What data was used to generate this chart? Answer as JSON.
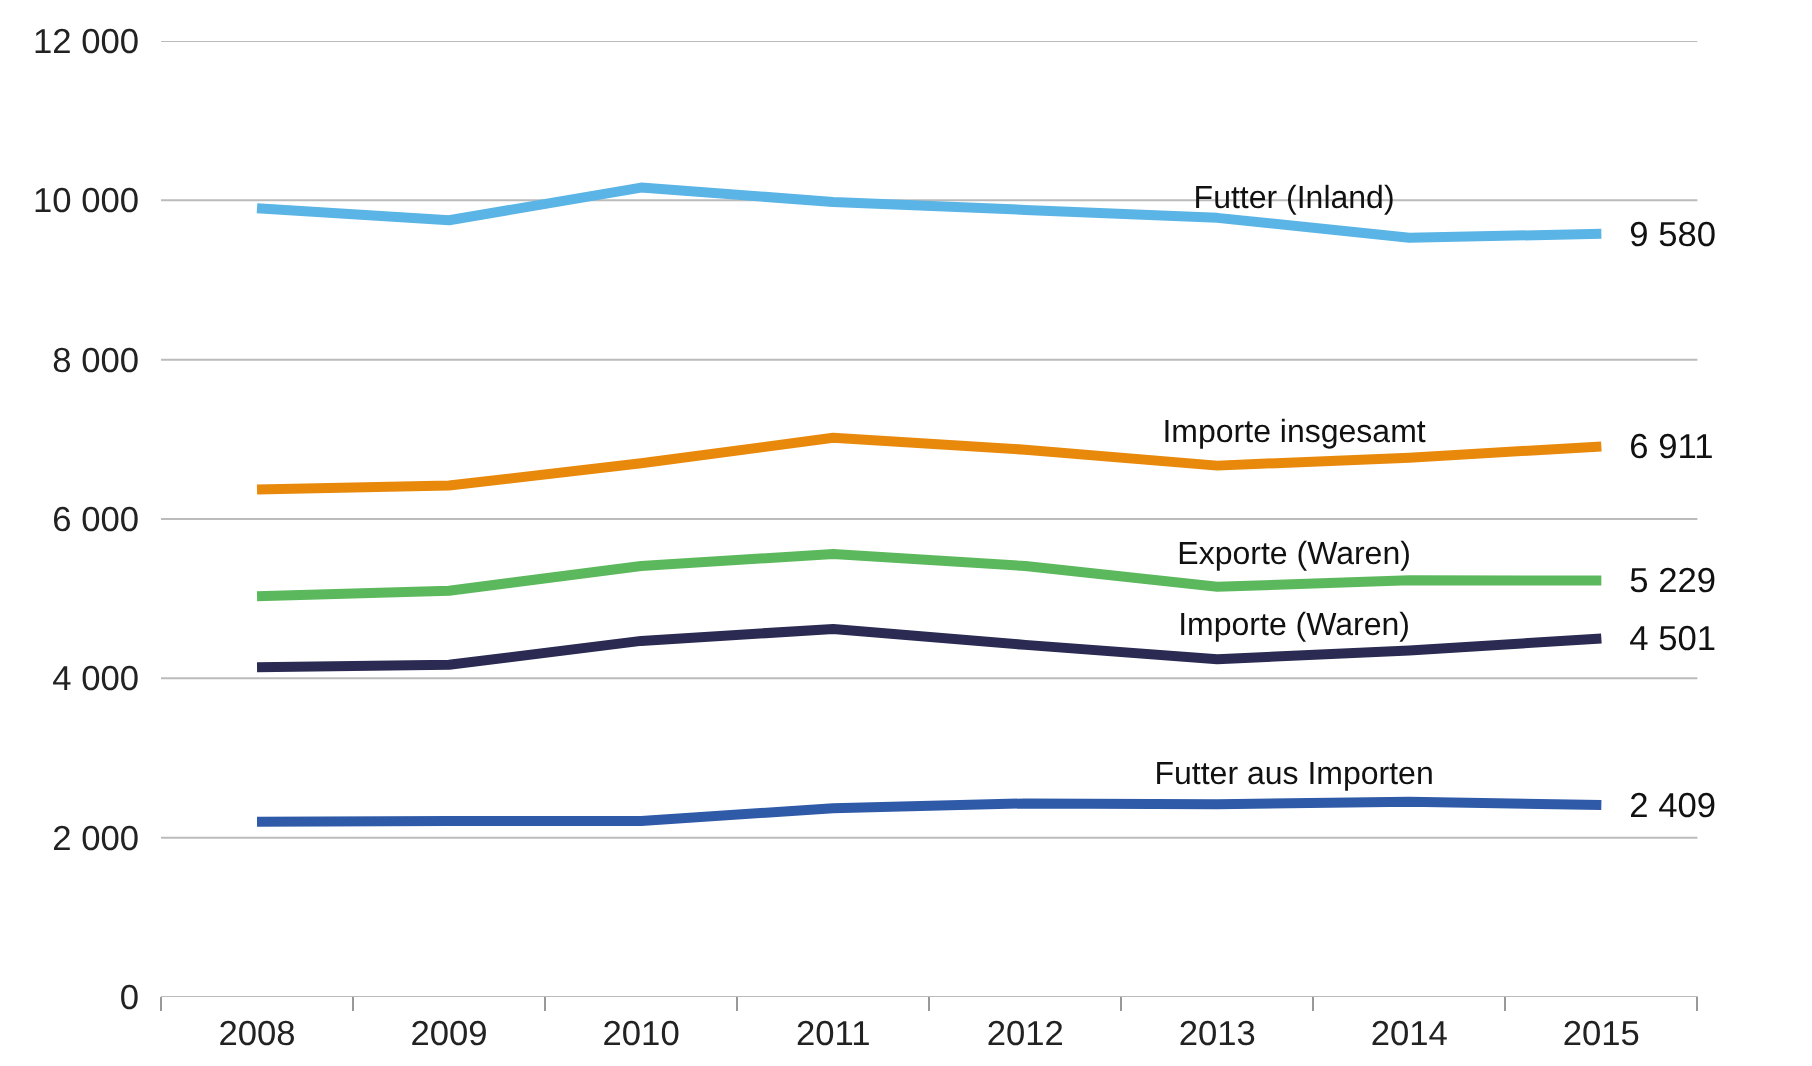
{
  "chart_data": {
    "type": "line",
    "categories": [
      "2008",
      "2009",
      "2010",
      "2011",
      "2012",
      "2013",
      "2014",
      "2015"
    ],
    "series": [
      {
        "name": "Futter (Inland)",
        "color": "#5ab4e5",
        "values": [
          9900,
          9750,
          10160,
          9980,
          9880,
          9780,
          9530,
          9580
        ],
        "value_labels": [
          null,
          null,
          null,
          null,
          null,
          null,
          null,
          "9 580"
        ]
      },
      {
        "name": "Importe insgesamt",
        "color": "#e8890c",
        "values": [
          6370,
          6420,
          6700,
          7020,
          6870,
          6670,
          6770,
          6911
        ],
        "value_labels": [
          null,
          null,
          null,
          null,
          null,
          null,
          null,
          "6 911"
        ]
      },
      {
        "name": "Exporte (Waren)",
        "color": "#5cb85c",
        "values": [
          5030,
          5100,
          5410,
          5560,
          5410,
          5150,
          5230,
          5229
        ],
        "value_labels": [
          null,
          null,
          null,
          null,
          null,
          null,
          null,
          "5 229"
        ]
      },
      {
        "name": "Importe (Waren)",
        "color": "#2a2a52",
        "values": [
          4140,
          4170,
          4470,
          4620,
          4420,
          4240,
          4350,
          4501
        ],
        "value_labels": [
          null,
          null,
          null,
          null,
          null,
          null,
          null,
          "4 501"
        ]
      },
      {
        "name": "Futter aus Importen",
        "color": "#2f5aa8",
        "values": [
          2200,
          2210,
          2210,
          2370,
          2430,
          2420,
          2450,
          2409
        ],
        "value_labels": [
          null,
          null,
          null,
          null,
          null,
          null,
          null,
          "2 409"
        ]
      }
    ],
    "ylim": [
      0,
      12000
    ],
    "yticks": [
      {
        "value": 0,
        "label": "0"
      },
      {
        "value": 2000,
        "label": "2 000"
      },
      {
        "value": 4000,
        "label": "4 000"
      },
      {
        "value": 6000,
        "label": "6 000"
      },
      {
        "value": 8000,
        "label": "8 000"
      },
      {
        "value": 10000,
        "label": "10 000"
      },
      {
        "value": 12000,
        "label": "12 000"
      }
    ],
    "grid": "y",
    "marker": "none",
    "line_style": "solid"
  }
}
